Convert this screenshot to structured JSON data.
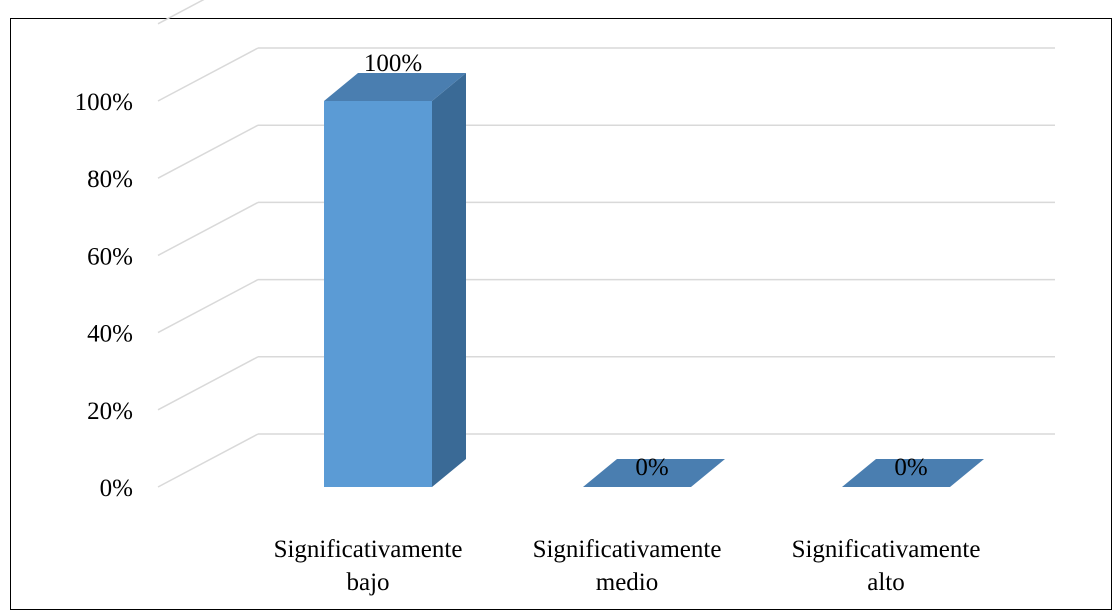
{
  "chart_data": {
    "type": "bar",
    "three_d": true,
    "categories": [
      [
        "Significativamente",
        "bajo"
      ],
      [
        "Significativamente",
        "medio"
      ],
      [
        "Significativamente",
        "alto"
      ]
    ],
    "values": [
      100,
      0,
      0
    ],
    "data_labels": [
      "100%",
      "0%",
      "0%"
    ],
    "ylim": [
      0,
      100
    ],
    "yticks": [
      0,
      20,
      40,
      60,
      80,
      100
    ],
    "ytick_labels": [
      "0%",
      "20%",
      "40%",
      "60%",
      "80%",
      "100%"
    ],
    "grid": true,
    "legend": "none",
    "colors": {
      "bar_front": "#5b9bd5",
      "bar_side": "#3a6a96",
      "bar_top": "#4a7eb0",
      "grid": "#d9d9d9"
    }
  }
}
